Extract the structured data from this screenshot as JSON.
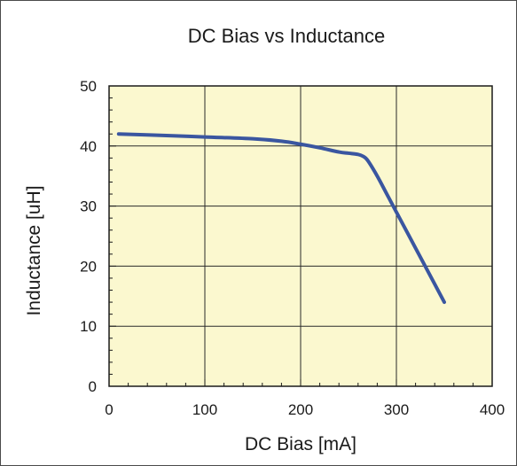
{
  "chart_data": {
    "type": "line",
    "title": "DC Bias vs Inductance",
    "xlabel": "DC Bias [mA]",
    "ylabel": "Inductance [uH]",
    "xlim": [
      0,
      400
    ],
    "ylim": [
      0,
      50
    ],
    "x_major_ticks": [
      0,
      100,
      200,
      300,
      400
    ],
    "x_tick_labels": [
      "0",
      "100",
      "200",
      "300",
      "400"
    ],
    "y_major_ticks": [
      0,
      10,
      20,
      30,
      40,
      50
    ],
    "y_tick_labels": [
      "0",
      "10",
      "20",
      "30",
      "40",
      "50"
    ],
    "x_minor_step": 20,
    "y_minor_step": 2,
    "grid": true,
    "legend": "none",
    "colors": {
      "plot_background": "#fbf8cf",
      "line": "#3a56a0",
      "grid": "#2a2a2a"
    },
    "series": [
      {
        "x": [
          10,
          50,
          100,
          150,
          180,
          200,
          220,
          240,
          250,
          260,
          265,
          270,
          280,
          290,
          300,
          320,
          340,
          350
        ],
        "values": [
          42.0,
          41.8,
          41.5,
          41.2,
          40.8,
          40.3,
          39.7,
          39.0,
          38.8,
          38.6,
          38.3,
          37.6,
          35.0,
          32.0,
          29.0,
          23.0,
          17.0,
          14.0
        ]
      }
    ]
  }
}
